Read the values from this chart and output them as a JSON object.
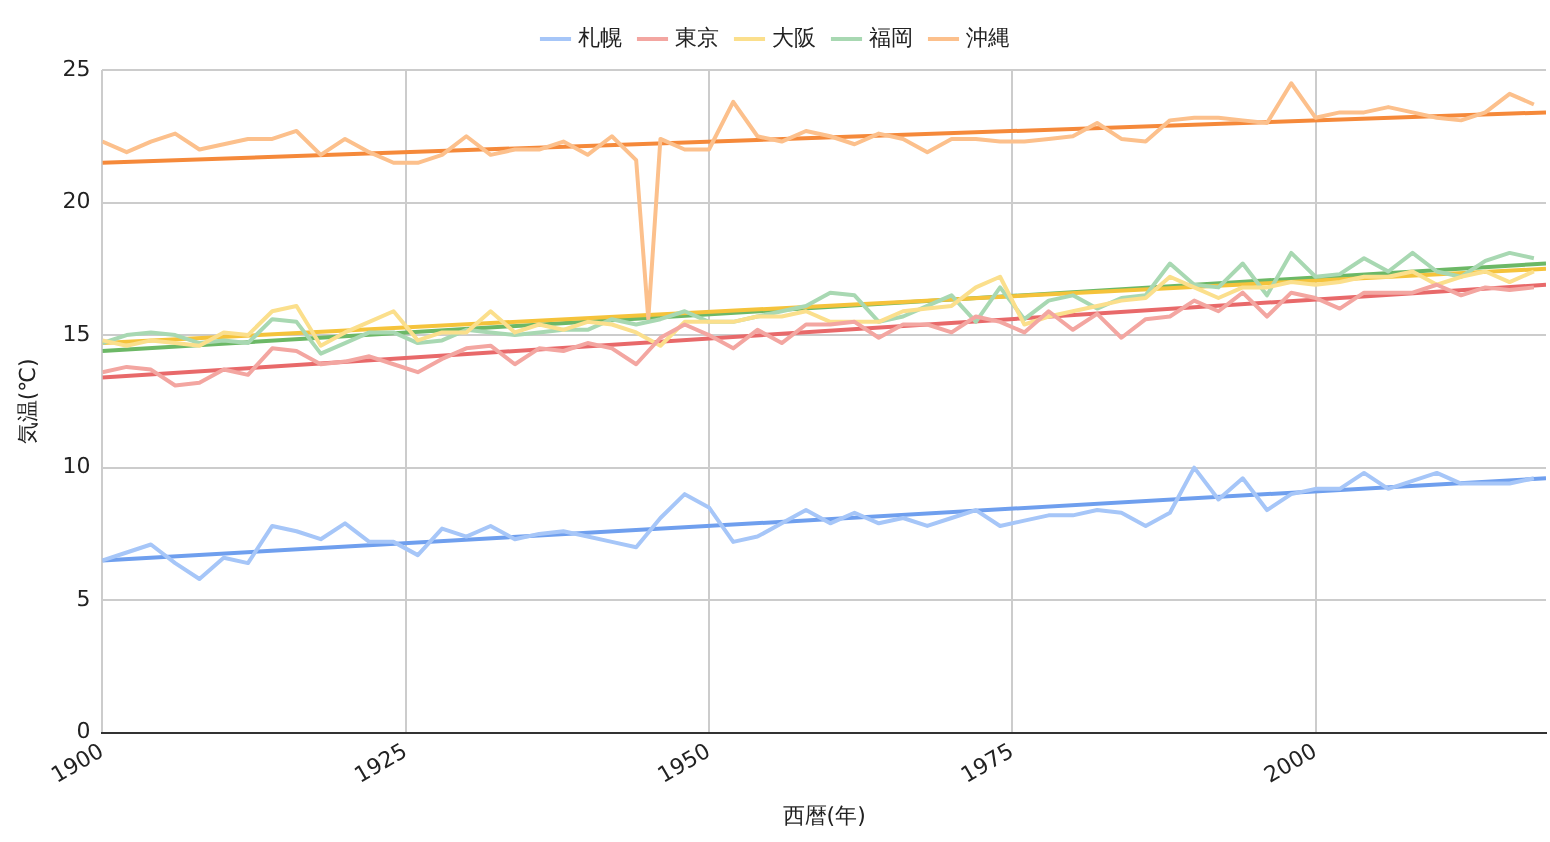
{
  "chart_data": {
    "type": "line",
    "xlabel": "西暦(年)",
    "ylabel": "気温(℃)",
    "xlim": [
      1900,
      2019
    ],
    "xticks": [
      1900,
      1925,
      1950,
      1975,
      2000
    ],
    "ylim": [
      0,
      25
    ],
    "yticks": [
      0,
      5,
      10,
      15,
      20,
      25
    ],
    "grid": true,
    "legend": "top",
    "marker": "none",
    "series": [
      {
        "name": "札幌",
        "color": "#a6c6f8",
        "x": [
          1900,
          1902,
          1904,
          1906,
          1908,
          1910,
          1912,
          1914,
          1916,
          1918,
          1920,
          1922,
          1924,
          1926,
          1928,
          1930,
          1932,
          1934,
          1936,
          1938,
          1940,
          1942,
          1944,
          1946,
          1948,
          1950,
          1952,
          1954,
          1956,
          1958,
          1960,
          1962,
          1964,
          1966,
          1968,
          1970,
          1972,
          1974,
          1976,
          1978,
          1980,
          1982,
          1984,
          1986,
          1988,
          1990,
          1992,
          1994,
          1996,
          1998,
          2000,
          2002,
          2004,
          2006,
          2008,
          2010,
          2012,
          2014,
          2016,
          2018
        ],
        "values": [
          6.5,
          6.8,
          7.1,
          6.4,
          5.8,
          6.6,
          6.4,
          7.8,
          7.6,
          7.3,
          7.9,
          7.2,
          7.2,
          6.7,
          7.7,
          7.4,
          7.8,
          7.3,
          7.5,
          7.6,
          7.4,
          7.2,
          7.0,
          8.1,
          9.0,
          8.5,
          7.2,
          7.4,
          7.9,
          8.4,
          7.9,
          8.3,
          7.9,
          8.1,
          7.8,
          8.1,
          8.4,
          7.8,
          8.0,
          8.2,
          8.2,
          8.4,
          8.3,
          7.8,
          8.3,
          10.0,
          8.8,
          9.6,
          8.4,
          9.0,
          9.2,
          9.2,
          9.8,
          9.2,
          9.5,
          9.8,
          9.4,
          9.4,
          9.4,
          9.6
        ]
      },
      {
        "name": "東京",
        "color": "#f3a6a1",
        "x": [
          1900,
          1902,
          1904,
          1906,
          1908,
          1910,
          1912,
          1914,
          1916,
          1918,
          1920,
          1922,
          1924,
          1926,
          1928,
          1930,
          1932,
          1934,
          1936,
          1938,
          1940,
          1942,
          1944,
          1946,
          1948,
          1950,
          1952,
          1954,
          1956,
          1958,
          1960,
          1962,
          1964,
          1966,
          1968,
          1970,
          1972,
          1974,
          1976,
          1978,
          1980,
          1982,
          1984,
          1986,
          1988,
          1990,
          1992,
          1994,
          1996,
          1998,
          2000,
          2002,
          2004,
          2006,
          2008,
          2010,
          2012,
          2014,
          2016,
          2018
        ],
        "values": [
          13.6,
          13.8,
          13.7,
          13.1,
          13.2,
          13.7,
          13.5,
          14.5,
          14.4,
          13.9,
          14.0,
          14.2,
          13.9,
          13.6,
          14.1,
          14.5,
          14.6,
          13.9,
          14.5,
          14.4,
          14.7,
          14.5,
          13.9,
          14.9,
          15.4,
          15.0,
          14.5,
          15.2,
          14.7,
          15.4,
          15.4,
          15.5,
          14.9,
          15.4,
          15.4,
          15.1,
          15.7,
          15.5,
          15.1,
          15.9,
          15.2,
          15.8,
          14.9,
          15.6,
          15.7,
          16.3,
          15.9,
          16.6,
          15.7,
          16.6,
          16.4,
          16.0,
          16.6,
          16.6,
          16.6,
          16.9,
          16.5,
          16.8,
          16.7,
          16.8
        ]
      },
      {
        "name": "大阪",
        "color": "#fbdf8c",
        "x": [
          1900,
          1902,
          1904,
          1906,
          1908,
          1910,
          1912,
          1914,
          1916,
          1918,
          1920,
          1922,
          1924,
          1926,
          1928,
          1930,
          1932,
          1934,
          1936,
          1938,
          1940,
          1942,
          1944,
          1946,
          1948,
          1950,
          1952,
          1954,
          1956,
          1958,
          1960,
          1962,
          1964,
          1966,
          1968,
          1970,
          1972,
          1974,
          1976,
          1978,
          1980,
          1982,
          1984,
          1986,
          1988,
          1990,
          1992,
          1994,
          1996,
          1998,
          2000,
          2002,
          2004,
          2006,
          2008,
          2010,
          2012,
          2014,
          2016,
          2018
        ],
        "values": [
          14.8,
          14.6,
          14.8,
          14.7,
          14.6,
          15.1,
          15.0,
          15.9,
          16.1,
          14.6,
          15.1,
          15.5,
          15.9,
          14.8,
          15.1,
          15.1,
          15.9,
          15.1,
          15.4,
          15.2,
          15.5,
          15.4,
          15.1,
          14.6,
          15.5,
          15.5,
          15.5,
          15.7,
          15.7,
          15.9,
          15.5,
          15.5,
          15.5,
          15.9,
          16.0,
          16.1,
          16.8,
          17.2,
          15.4,
          15.7,
          15.9,
          16.1,
          16.3,
          16.4,
          17.2,
          16.8,
          16.4,
          16.8,
          16.8,
          17.0,
          16.9,
          17.0,
          17.2,
          17.2,
          17.4,
          16.9,
          17.2,
          17.4,
          17.0,
          17.4
        ]
      },
      {
        "name": "福岡",
        "color": "#a8d8b2",
        "x": [
          1900,
          1902,
          1904,
          1906,
          1908,
          1910,
          1912,
          1914,
          1916,
          1918,
          1920,
          1922,
          1924,
          1926,
          1928,
          1930,
          1932,
          1934,
          1936,
          1938,
          1940,
          1942,
          1944,
          1946,
          1948,
          1950,
          1952,
          1954,
          1956,
          1958,
          1960,
          1962,
          1964,
          1966,
          1968,
          1970,
          1972,
          1974,
          1976,
          1978,
          1980,
          1982,
          1984,
          1986,
          1988,
          1990,
          1992,
          1994,
          1996,
          1998,
          2000,
          2002,
          2004,
          2006,
          2008,
          2010,
          2012,
          2014,
          2016,
          2018
        ],
        "values": [
          14.7,
          15.0,
          15.1,
          15.0,
          14.7,
          14.8,
          14.7,
          15.6,
          15.5,
          14.3,
          14.7,
          15.1,
          15.1,
          14.7,
          14.8,
          15.2,
          15.1,
          15.0,
          15.1,
          15.2,
          15.2,
          15.6,
          15.4,
          15.6,
          15.9,
          15.5,
          15.5,
          15.7,
          15.9,
          16.1,
          16.6,
          16.5,
          15.5,
          15.7,
          16.1,
          16.5,
          15.5,
          16.8,
          15.6,
          16.3,
          16.5,
          16.0,
          16.4,
          16.5,
          17.7,
          16.9,
          16.8,
          17.7,
          16.5,
          18.1,
          17.2,
          17.3,
          17.9,
          17.4,
          18.1,
          17.4,
          17.2,
          17.8,
          18.1,
          17.9
        ]
      },
      {
        "name": "沖縄",
        "color": "#fcc08c",
        "x": [
          1900,
          1902,
          1904,
          1906,
          1908,
          1910,
          1912,
          1914,
          1916,
          1918,
          1920,
          1922,
          1924,
          1926,
          1928,
          1930,
          1932,
          1934,
          1936,
          1938,
          1940,
          1942,
          1944,
          1945,
          1946,
          1948,
          1950,
          1952,
          1954,
          1956,
          1958,
          1960,
          1962,
          1964,
          1966,
          1968,
          1970,
          1972,
          1974,
          1976,
          1978,
          1980,
          1982,
          1984,
          1986,
          1988,
          1990,
          1992,
          1994,
          1996,
          1998,
          2000,
          2002,
          2004,
          2006,
          2008,
          2010,
          2012,
          2014,
          2016,
          2018
        ],
        "values": [
          22.3,
          21.9,
          22.3,
          22.6,
          22.0,
          22.2,
          22.4,
          22.4,
          22.7,
          21.8,
          22.4,
          21.9,
          21.5,
          21.5,
          21.8,
          22.5,
          21.8,
          22.0,
          22.0,
          22.3,
          21.8,
          22.5,
          21.6,
          15.6,
          22.4,
          22.0,
          22.0,
          23.8,
          22.5,
          22.3,
          22.7,
          22.5,
          22.2,
          22.6,
          22.4,
          21.9,
          22.4,
          22.4,
          22.3,
          22.3,
          22.4,
          22.5,
          23.0,
          22.4,
          22.3,
          23.1,
          23.2,
          23.2,
          23.1,
          23.0,
          24.5,
          23.2,
          23.4,
          23.4,
          23.6,
          23.4,
          23.2,
          23.1,
          23.4,
          24.1,
          23.7
        ]
      },
      {
        "color": "#6f9fee",
        "x": [
          1900,
          2019
        ],
        "values": [
          6.5,
          9.6
        ]
      },
      {
        "color": "#e8696a",
        "x": [
          1900,
          2019
        ],
        "values": [
          13.4,
          16.9
        ]
      },
      {
        "color": "#f5c33b",
        "x": [
          1900,
          2019
        ],
        "values": [
          14.7,
          17.5
        ]
      },
      {
        "color": "#6cb866",
        "x": [
          1900,
          2019
        ],
        "values": [
          14.4,
          17.7
        ]
      },
      {
        "color": "#f5893a",
        "x": [
          1900,
          2019
        ],
        "values": [
          21.5,
          23.4
        ]
      }
    ]
  }
}
